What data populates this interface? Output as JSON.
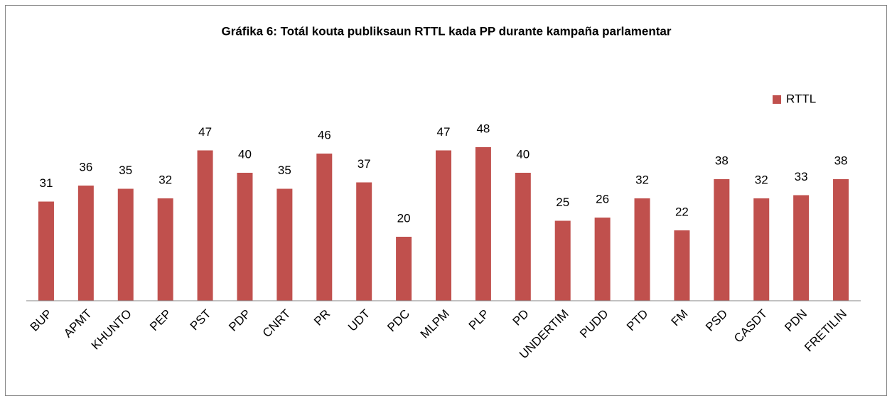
{
  "chart_data": {
    "type": "bar",
    "title": "Gráfika 6: Totál kouta publiksaun RTTL kada PP durante kampaña parlamentar",
    "categories": [
      "BUP",
      "APMT",
      "KHUNTO",
      "PEP",
      "PST",
      "PDP",
      "CNRT",
      "PR",
      "UDT",
      "PDC",
      "MLPM",
      "PLP",
      "PD",
      "UNDERTIM",
      "PUDD",
      "PTD",
      "FM",
      "PSD",
      "CASDT",
      "PDN",
      "FRETILIN"
    ],
    "series": [
      {
        "name": "RTTL",
        "color": "#c0504d",
        "values": [
          31,
          36,
          35,
          32,
          47,
          40,
          35,
          46,
          37,
          20,
          47,
          48,
          40,
          25,
          26,
          32,
          22,
          38,
          32,
          33,
          38
        ]
      }
    ],
    "ylim": [
      0,
      50
    ],
    "legend": "top-right"
  }
}
